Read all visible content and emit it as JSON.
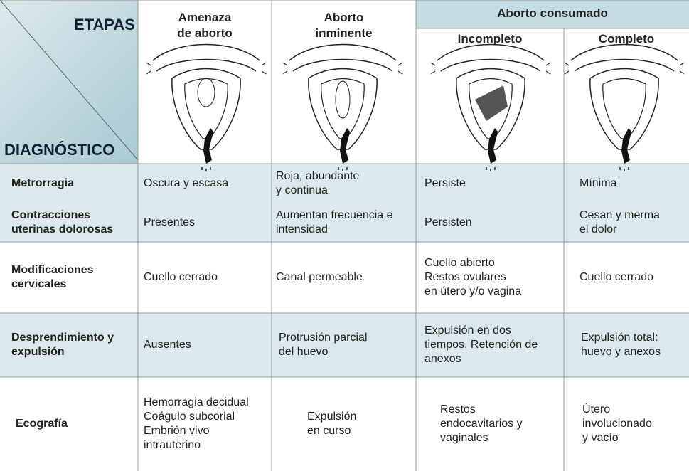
{
  "header": {
    "etapas": "ETAPAS",
    "diagnostico": "DIAGNÓSTICO",
    "group": "Aborto consumado",
    "columns": [
      "Amenaza\nde aborto",
      "Aborto\ninminente",
      "Incompleto",
      "Completo"
    ]
  },
  "rows": [
    {
      "label": "Metrorragia",
      "cells": [
        "Oscura y escasa",
        "Roja, abundante\n y continua",
        "Persiste",
        "Mínima"
      ]
    },
    {
      "label": "Contracciones\nuterinas dolorosas",
      "cells": [
        "Presentes",
        "Aumentan frecuencia e\nintensidad",
        "Persisten",
        "Cesan y merma\nel dolor"
      ]
    },
    {
      "label": "Modificaciones\ncervicales",
      "cells": [
        "Cuello cerrado",
        "Canal permeable",
        "Cuello abierto\nRestos ovulares\nen útero y/o vagina",
        "Cuello cerrado"
      ]
    },
    {
      "label": "Desprendimiento y\nexpulsión",
      "cells": [
        "Ausentes",
        "Protrusión parcial\ndel huevo",
        "Expulsión en dos\ntiempos. Retención de\nanexos",
        "Expulsión total:\nhuevo y anexos"
      ]
    },
    {
      "label": "Ecografía",
      "cells": [
        "Hemorragia decidual\nCoágulo subcorial\nEmbrión vivo\nintrauterino",
        "Expulsión\nen curso",
        "Restos\nendocavitarios y\nvaginales",
        "Útero\ninvolucionado\ny vacío"
      ]
    }
  ]
}
